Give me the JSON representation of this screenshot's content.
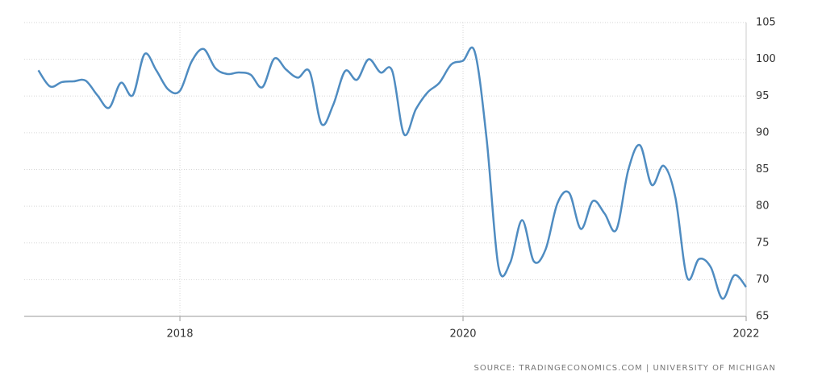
{
  "chart_data": {
    "type": "line",
    "source": "SOURCE: TRADINGECONOMICS.COM | UNIVERSITY OF MICHIGAN",
    "x": [
      2017,
      2017.083,
      2017.167,
      2017.25,
      2017.333,
      2017.417,
      2017.5,
      2017.583,
      2017.667,
      2017.75,
      2017.833,
      2017.917,
      2018,
      2018.083,
      2018.167,
      2018.25,
      2018.333,
      2018.417,
      2018.5,
      2018.583,
      2018.667,
      2018.75,
      2018.833,
      2018.917,
      2019,
      2019.083,
      2019.167,
      2019.25,
      2019.333,
      2019.417,
      2019.5,
      2019.583,
      2019.667,
      2019.75,
      2019.833,
      2019.917,
      2020,
      2020.083,
      2020.167,
      2020.25,
      2020.333,
      2020.417,
      2020.5,
      2020.583,
      2020.667,
      2020.75,
      2020.833,
      2020.917,
      2021,
      2021.083,
      2021.167,
      2021.25,
      2021.333,
      2021.417,
      2021.5,
      2021.583,
      2021.667,
      2021.75,
      2021.833,
      2021.917,
      2022
    ],
    "series": [
      {
        "color": "#4f8cc1",
        "values": [
          98.5,
          96.3,
          96.9,
          97.0,
          97.1,
          95.1,
          93.4,
          96.8,
          95.1,
          100.7,
          98.5,
          95.9,
          95.7,
          99.7,
          101.4,
          98.8,
          98.0,
          98.2,
          97.9,
          96.2,
          100.1,
          98.6,
          97.5,
          98.3,
          91.2,
          93.8,
          98.4,
          97.2,
          100.0,
          98.2,
          98.4,
          89.8,
          93.2,
          95.5,
          96.8,
          99.3,
          99.8,
          101.0,
          89.1,
          71.8,
          72.3,
          78.1,
          72.5,
          74.1,
          80.4,
          81.8,
          76.9,
          80.7,
          79.0,
          76.8,
          84.9,
          88.3,
          82.9,
          85.5,
          81.2,
          70.3,
          72.8,
          71.7,
          67.4,
          70.6,
          69.0
        ]
      }
    ],
    "xlim": [
      2016.9,
      2022
    ],
    "xticks": [
      2018,
      2020,
      2022
    ],
    "ylim": [
      65,
      105
    ],
    "yticks": [
      65,
      70,
      75,
      80,
      85,
      90,
      95,
      100,
      105
    ],
    "grid": true
  }
}
